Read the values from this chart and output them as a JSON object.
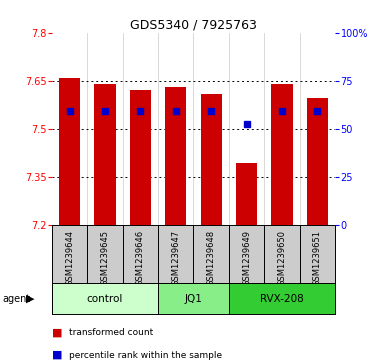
{
  "title": "GDS5340 / 7925763",
  "samples": [
    "GSM1239644",
    "GSM1239645",
    "GSM1239646",
    "GSM1239647",
    "GSM1239648",
    "GSM1239649",
    "GSM1239650",
    "GSM1239651"
  ],
  "bar_values": [
    7.66,
    7.64,
    7.62,
    7.63,
    7.61,
    7.395,
    7.64,
    7.595
  ],
  "percentile_values": [
    7.555,
    7.555,
    7.555,
    7.555,
    7.555,
    7.515,
    7.555,
    7.555
  ],
  "ylim": [
    7.2,
    7.8
  ],
  "yticks": [
    7.2,
    7.35,
    7.5,
    7.65,
    7.8
  ],
  "ytick_labels": [
    "7.2",
    "7.35",
    "7.5",
    "7.65",
    "7.8"
  ],
  "right_yticks": [
    0,
    25,
    50,
    75,
    100
  ],
  "right_ytick_labels": [
    "0",
    "25",
    "50",
    "75",
    "100%"
  ],
  "bar_color": "#cc0000",
  "blue_color": "#0000cc",
  "bar_width": 0.6,
  "groups": [
    {
      "label": "control",
      "start": 0,
      "end": 3,
      "color": "#ccffcc"
    },
    {
      "label": "JQ1",
      "start": 3,
      "end": 5,
      "color": "#88ee88"
    },
    {
      "label": "RVX-208",
      "start": 5,
      "end": 8,
      "color": "#33cc33"
    }
  ],
  "agent_label": "agent",
  "legend1_label": "transformed count",
  "legend2_label": "percentile rank within the sample",
  "title_fontsize": 9,
  "tick_fontsize": 7,
  "label_fontsize": 6,
  "group_fontsize": 7.5
}
